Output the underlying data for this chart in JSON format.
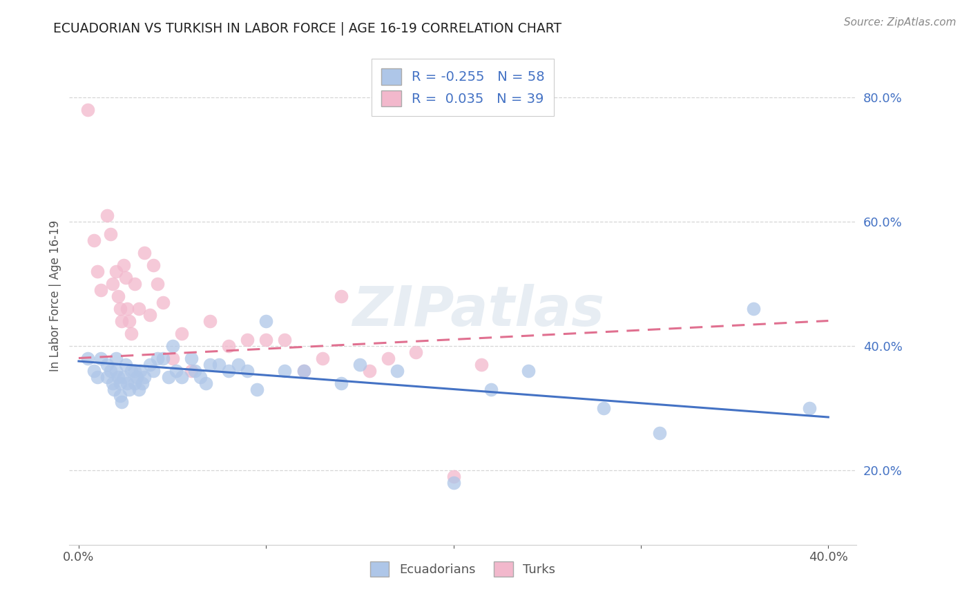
{
  "title": "ECUADORIAN VS TURKISH IN LABOR FORCE | AGE 16-19 CORRELATION CHART",
  "source_text": "Source: ZipAtlas.com",
  "ylabel": "In Labor Force | Age 16-19",
  "xlim": [
    -0.005,
    0.415
  ],
  "ylim": [
    0.08,
    0.88
  ],
  "xticks": [
    0.0,
    0.1,
    0.2,
    0.3,
    0.4
  ],
  "xtick_labels": [
    "0.0%",
    "",
    "",
    "",
    "40.0%"
  ],
  "yticks": [
    0.2,
    0.4,
    0.6,
    0.8
  ],
  "ytick_labels": [
    "20.0%",
    "40.0%",
    "60.0%",
    "80.0%"
  ],
  "ecuadorian_color": "#aec6e8",
  "turk_color": "#f2b8cc",
  "ecuadorian_line_color": "#4472c4",
  "turk_line_color": "#e07090",
  "background_color": "#ffffff",
  "R_ecuadorian": -0.255,
  "N_ecuadorian": 58,
  "R_turk": 0.035,
  "N_turk": 39,
  "watermark": "ZIPatlas",
  "ecu_line_x0": 0.0,
  "ecu_line_y0": 0.375,
  "ecu_line_x1": 0.4,
  "ecu_line_y1": 0.285,
  "turk_line_x0": 0.0,
  "turk_line_y0": 0.38,
  "turk_line_x1": 0.4,
  "turk_line_y1": 0.44,
  "ecuadorian_x": [
    0.005,
    0.008,
    0.01,
    0.012,
    0.015,
    0.015,
    0.017,
    0.018,
    0.019,
    0.02,
    0.02,
    0.021,
    0.022,
    0.022,
    0.023,
    0.024,
    0.025,
    0.026,
    0.027,
    0.028,
    0.03,
    0.03,
    0.031,
    0.032,
    0.033,
    0.034,
    0.035,
    0.038,
    0.04,
    0.042,
    0.045,
    0.048,
    0.05,
    0.052,
    0.055,
    0.06,
    0.062,
    0.065,
    0.068,
    0.07,
    0.075,
    0.08,
    0.085,
    0.09,
    0.095,
    0.1,
    0.11,
    0.12,
    0.14,
    0.15,
    0.17,
    0.2,
    0.22,
    0.24,
    0.28,
    0.31,
    0.36,
    0.39
  ],
  "ecuadorian_y": [
    0.38,
    0.36,
    0.35,
    0.38,
    0.37,
    0.35,
    0.36,
    0.34,
    0.33,
    0.38,
    0.36,
    0.35,
    0.34,
    0.32,
    0.31,
    0.35,
    0.37,
    0.34,
    0.33,
    0.36,
    0.36,
    0.34,
    0.35,
    0.33,
    0.36,
    0.34,
    0.35,
    0.37,
    0.36,
    0.38,
    0.38,
    0.35,
    0.4,
    0.36,
    0.35,
    0.38,
    0.36,
    0.35,
    0.34,
    0.37,
    0.37,
    0.36,
    0.37,
    0.36,
    0.33,
    0.44,
    0.36,
    0.36,
    0.34,
    0.37,
    0.36,
    0.18,
    0.33,
    0.36,
    0.3,
    0.26,
    0.46,
    0.3
  ],
  "turk_x": [
    0.005,
    0.008,
    0.01,
    0.012,
    0.015,
    0.017,
    0.018,
    0.02,
    0.021,
    0.022,
    0.023,
    0.024,
    0.025,
    0.026,
    0.027,
    0.028,
    0.03,
    0.032,
    0.035,
    0.038,
    0.04,
    0.042,
    0.045,
    0.05,
    0.055,
    0.06,
    0.07,
    0.08,
    0.09,
    0.1,
    0.11,
    0.12,
    0.13,
    0.14,
    0.155,
    0.165,
    0.18,
    0.2,
    0.215
  ],
  "turk_y": [
    0.78,
    0.57,
    0.52,
    0.49,
    0.61,
    0.58,
    0.5,
    0.52,
    0.48,
    0.46,
    0.44,
    0.53,
    0.51,
    0.46,
    0.44,
    0.42,
    0.5,
    0.46,
    0.55,
    0.45,
    0.53,
    0.5,
    0.47,
    0.38,
    0.42,
    0.36,
    0.44,
    0.4,
    0.41,
    0.41,
    0.41,
    0.36,
    0.38,
    0.48,
    0.36,
    0.38,
    0.39,
    0.19,
    0.37
  ]
}
